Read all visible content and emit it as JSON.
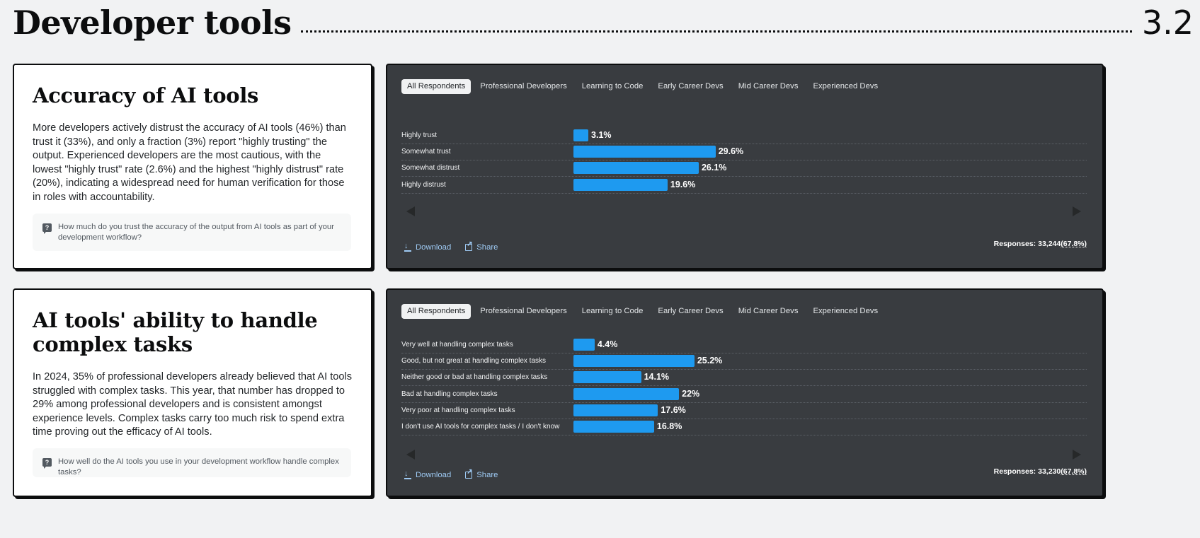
{
  "header": {
    "title": "Developer tools",
    "section": "3.2"
  },
  "tabs": [
    "All Respondents",
    "Professional Developers",
    "Learning to Code",
    "Early Career Devs",
    "Mid Career Devs",
    "Experienced Devs"
  ],
  "actions": {
    "download": "Download",
    "share": "Share"
  },
  "responses_label": "Responses:",
  "cards": [
    {
      "title": "Accuracy of AI tools",
      "body": "More developers actively distrust the accuracy of AI tools (46%) than trust it (33%), and only a fraction (3%) report \"highly trusting\" the output. Experienced developers are the most cautious, with the lowest \"highly trust\" rate (2.6%) and the highest \"highly distrust\" rate (20%), indicating a widespread need for human verification for those in roles with accountability.",
      "question": "How much do you trust the accuracy of the output from AI tools as part of your development workflow?",
      "responses_count": "33,244",
      "responses_pct": "(67.8%)"
    },
    {
      "title": "AI tools' ability to handle complex tasks",
      "body": "In 2024, 35% of professional developers already believed that AI tools struggled with complex tasks. This year, that number has dropped to 29% among professional developers and is consistent amongst experience levels. Complex tasks carry too much risk to spend extra time proving out the efficacy of AI tools.",
      "question": "How well do the AI tools you use in your development workflow handle complex tasks?",
      "responses_count": "33,230",
      "responses_pct": "(67.8%)"
    }
  ],
  "chart_data": [
    {
      "type": "bar",
      "orientation": "horizontal",
      "categories": [
        "Highly trust",
        "Somewhat trust",
        "Somewhat distrust",
        "Highly distrust"
      ],
      "values": [
        3.1,
        29.6,
        26.1,
        19.6
      ],
      "value_labels": [
        "3.1%",
        "29.6%",
        "26.1%",
        "19.6%"
      ],
      "unit": "%",
      "bar_color": "#1e9af0"
    },
    {
      "type": "bar",
      "orientation": "horizontal",
      "categories": [
        "Very well at handling complex tasks",
        "Good, but not great at handling complex tasks",
        "Neither good or bad at handling complex tasks",
        "Bad at handling complex tasks",
        "Very poor at handling complex tasks",
        "I don't use AI tools for complex tasks / I don't know"
      ],
      "values": [
        4.4,
        25.2,
        14.1,
        22,
        17.6,
        16.8
      ],
      "value_labels": [
        "4.4%",
        "25.2%",
        "14.1%",
        "22%",
        "17.6%",
        "16.8%"
      ],
      "unit": "%",
      "bar_color": "#1e9af0"
    }
  ]
}
